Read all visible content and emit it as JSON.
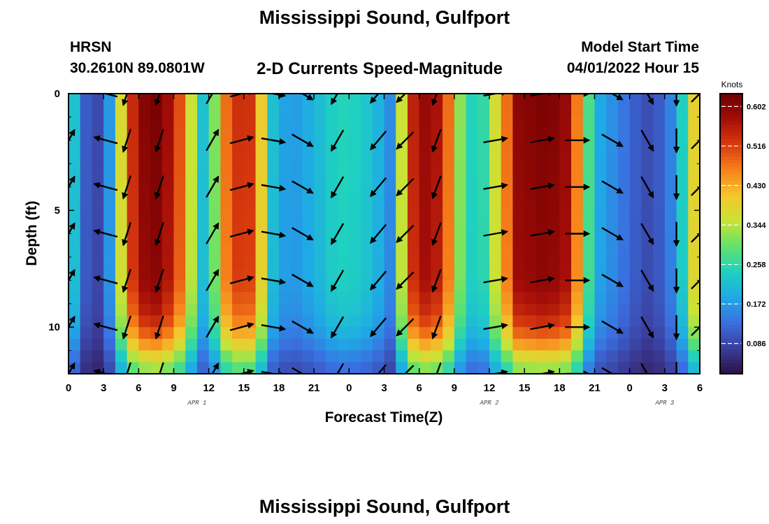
{
  "header": {
    "title": "Mississippi Sound, Gulfport",
    "station": "HRSN",
    "coords": "30.2610N  89.0801W",
    "subtitle": "2-D Currents Speed-Magnitude",
    "model_start_label": "Model Start Time",
    "model_start_value": "04/01/2022 Hour 15",
    "footer_title": "Mississippi Sound, Gulfport"
  },
  "chart_data": {
    "type": "heatmap",
    "title": "2-D Currents Speed-Magnitude",
    "xlabel": "Forecast Time(Z)",
    "ylabel": "Depth (ft)",
    "x_range_hours": [
      0,
      54
    ],
    "x_tick_labels": [
      "0",
      "3",
      "6",
      "9",
      "12",
      "15",
      "18",
      "21",
      "0",
      "3",
      "6",
      "9",
      "12",
      "15",
      "18",
      "21",
      "0",
      "3",
      "6"
    ],
    "date_labels": [
      {
        "label": "APR 1",
        "hour": 11
      },
      {
        "label": "APR 2",
        "hour": 36
      },
      {
        "label": "APR 3",
        "hour": 51
      }
    ],
    "y_range_ft": [
      0,
      12
    ],
    "y_reversed": true,
    "y_tick_labels": [
      "0",
      "5",
      "10"
    ],
    "y_tick_values": [
      0,
      5,
      10
    ],
    "colorbar": {
      "unit": "Knots",
      "labels": [
        "0.602",
        "0.516",
        "0.430",
        "0.344",
        "0.258",
        "0.172",
        "0.086"
      ],
      "min": 0.02,
      "max": 0.63,
      "colors": [
        "#2a1244",
        "#3b3d9b",
        "#3a6fe0",
        "#1fa9e6",
        "#1fd1c0",
        "#62e26a",
        "#c9e336",
        "#f4c62c",
        "#f7821b",
        "#d83a0e",
        "#a40d08",
        "#6e0000"
      ]
    },
    "time_speed_profile": [
      {
        "h": 0,
        "v": 0.24
      },
      {
        "h": 0.5,
        "v": 0.22
      },
      {
        "h": 1,
        "v": 0.14
      },
      {
        "h": 2,
        "v": 0.08
      },
      {
        "h": 3,
        "v": 0.1
      },
      {
        "h": 3.7,
        "v": 0.2
      },
      {
        "h": 4.3,
        "v": 0.33
      },
      {
        "h": 5,
        "v": 0.48
      },
      {
        "h": 6,
        "v": 0.6
      },
      {
        "h": 7.5,
        "v": 0.62
      },
      {
        "h": 9,
        "v": 0.56
      },
      {
        "h": 10,
        "v": 0.45
      },
      {
        "h": 10.8,
        "v": 0.3
      },
      {
        "h": 11.5,
        "v": 0.22
      },
      {
        "h": 12.3,
        "v": 0.28
      },
      {
        "h": 13.5,
        "v": 0.48
      },
      {
        "h": 15,
        "v": 0.56
      },
      {
        "h": 16,
        "v": 0.5
      },
      {
        "h": 16.8,
        "v": 0.34
      },
      {
        "h": 17.6,
        "v": 0.2
      },
      {
        "h": 19,
        "v": 0.17
      },
      {
        "h": 21,
        "v": 0.2
      },
      {
        "h": 23,
        "v": 0.25
      },
      {
        "h": 25,
        "v": 0.24
      },
      {
        "h": 26.5,
        "v": 0.2
      },
      {
        "h": 27.5,
        "v": 0.16
      },
      {
        "h": 28.3,
        "v": 0.3
      },
      {
        "h": 29,
        "v": 0.5
      },
      {
        "h": 30,
        "v": 0.6
      },
      {
        "h": 32,
        "v": 0.56
      },
      {
        "h": 33,
        "v": 0.4
      },
      {
        "h": 34,
        "v": 0.24
      },
      {
        "h": 35.5,
        "v": 0.26
      },
      {
        "h": 37,
        "v": 0.42
      },
      {
        "h": 38.5,
        "v": 0.6
      },
      {
        "h": 41,
        "v": 0.62
      },
      {
        "h": 43,
        "v": 0.58
      },
      {
        "h": 44,
        "v": 0.36
      },
      {
        "h": 45,
        "v": 0.2
      },
      {
        "h": 47,
        "v": 0.15
      },
      {
        "h": 49,
        "v": 0.1
      },
      {
        "h": 50,
        "v": 0.09
      },
      {
        "h": 51.5,
        "v": 0.15
      },
      {
        "h": 52.5,
        "v": 0.24
      },
      {
        "h": 53.2,
        "v": 0.36
      },
      {
        "h": 54,
        "v": 0.44
      }
    ],
    "depth_factor": [
      {
        "d": 0,
        "f": 1.0
      },
      {
        "d": 8,
        "f": 0.97
      },
      {
        "d": 9.5,
        "f": 0.9
      },
      {
        "d": 10.5,
        "f": 0.78
      },
      {
        "d": 11.3,
        "f": 0.62
      },
      {
        "d": 12,
        "f": 0.5
      }
    ],
    "vector_columns_hours": [
      0,
      3.2,
      5,
      7.8,
      12.3,
      14.8,
      17.5,
      20,
      23,
      26.5,
      28.8,
      31.5,
      36.5,
      40.5,
      43.5,
      46.5,
      49.5,
      52,
      54
    ],
    "vector_rows_ft": [
      0,
      2,
      4,
      6,
      8,
      10,
      12
    ],
    "vector_columns": [
      {
        "hour": 0,
        "dir_deg": 30
      },
      {
        "hour": 3.2,
        "dir_deg": 285
      },
      {
        "hour": 5,
        "dir_deg": 198
      },
      {
        "hour": 7.8,
        "dir_deg": 198
      },
      {
        "hour": 12.3,
        "dir_deg": 30
      },
      {
        "hour": 14.8,
        "dir_deg": 75
      },
      {
        "hour": 17.5,
        "dir_deg": 100
      },
      {
        "hour": 20,
        "dir_deg": 120
      },
      {
        "hour": 23,
        "dir_deg": 210
      },
      {
        "hour": 26.5,
        "dir_deg": 220
      },
      {
        "hour": 28.8,
        "dir_deg": 225
      },
      {
        "hour": 31.5,
        "dir_deg": 200
      },
      {
        "hour": 36.5,
        "dir_deg": 80
      },
      {
        "hour": 40.5,
        "dir_deg": 80
      },
      {
        "hour": 43.5,
        "dir_deg": 90
      },
      {
        "hour": 46.5,
        "dir_deg": 120
      },
      {
        "hour": 49.5,
        "dir_deg": 150
      },
      {
        "hour": 52,
        "dir_deg": 180
      },
      {
        "hour": 54,
        "dir_deg": 45
      }
    ]
  }
}
